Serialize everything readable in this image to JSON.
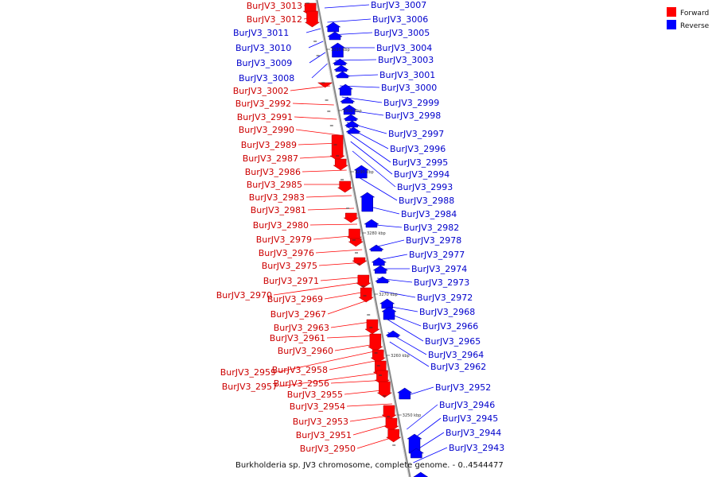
{
  "caption": "Burkholderia sp. JV3 chromosome, complete genome. - 0..4544477",
  "legend": [
    {
      "label": "Forward",
      "color": "#ff0000"
    },
    {
      "label": "Reverse",
      "color": "#0000ff"
    }
  ],
  "colors": {
    "forward": "#ff0000",
    "reverse": "#0000ff",
    "axis": "#888888"
  },
  "scale_ticks": [
    "3310 kbp",
    "3300 kbp",
    "3290 kbp",
    "3280 kbp",
    "3270 kbp",
    "3260 kbp",
    "3250 kbp"
  ],
  "forward_labels": [
    "BurJV3_3013",
    "BurJV3_3012",
    "BurJV3_3002",
    "BurJV3_2992",
    "BurJV3_2991",
    "BurJV3_2990",
    "BurJV3_2989",
    "BurJV3_2987",
    "BurJV3_2986",
    "BurJV3_2985",
    "BurJV3_2983",
    "BurJV3_2981",
    "BurJV3_2980",
    "BurJV3_2979",
    "BurJV3_2976",
    "BurJV3_2975",
    "BurJV3_2971",
    "BurJV3_2970",
    "BurJV3_2969",
    "BurJV3_2967",
    "BurJV3_2963",
    "BurJV3_2961",
    "BurJV3_2960",
    "BurJV3_2959",
    "BurJV3_2958",
    "BurJV3_2957",
    "BurJV3_2956",
    "BurJV3_2955",
    "BurJV3_2954",
    "BurJV3_2953",
    "BurJV3_2951",
    "BurJV3_2950"
  ],
  "reverse_labels": [
    "BurJV3_3011",
    "BurJV3_3010",
    "BurJV3_3009",
    "BurJV3_3008",
    "BurJV3_3007",
    "BurJV3_3006",
    "BurJV3_3005",
    "BurJV3_3004",
    "BurJV3_3003",
    "BurJV3_3001",
    "BurJV3_3000",
    "BurJV3_2999",
    "BurJV3_2998",
    "BurJV3_2997",
    "BurJV3_2996",
    "BurJV3_2995",
    "BurJV3_2994",
    "BurJV3_2993",
    "BurJV3_2988",
    "BurJV3_2984",
    "BurJV3_2982",
    "BurJV3_2978",
    "BurJV3_2977",
    "BurJV3_2974",
    "BurJV3_2973",
    "BurJV3_2972",
    "BurJV3_2968",
    "BurJV3_2966",
    "BurJV3_2965",
    "BurJV3_2964",
    "BurJV3_2962",
    "BurJV3_2952",
    "BurJV3_2946",
    "BurJV3_2945",
    "BurJV3_2944",
    "BurJV3_2943"
  ]
}
